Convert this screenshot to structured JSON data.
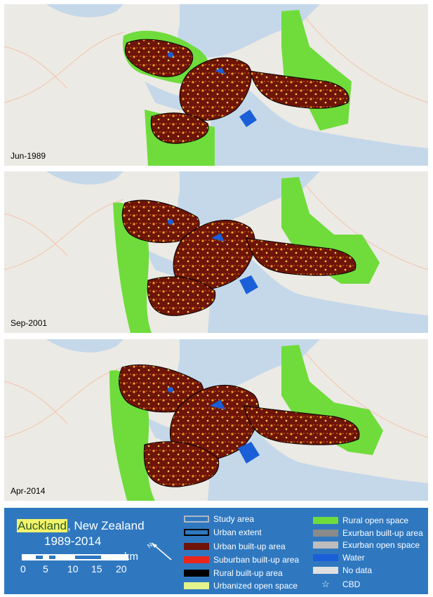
{
  "panels": [
    {
      "date": "Jun-1989"
    },
    {
      "date": "Sep-2001"
    },
    {
      "date": "Apr-2014"
    }
  ],
  "legend": {
    "place": "Auckland",
    "country_suffix": ", New Zealand",
    "years": "1989-2014",
    "scale_unit": "km",
    "scale_ticks": [
      "0",
      "5",
      "10",
      "15",
      "20"
    ],
    "items": [
      {
        "label": "Study area",
        "color": "#2f78c0",
        "border": "#aeb8c4"
      },
      {
        "label": "Urban extent",
        "color": "#2f78c0",
        "border": "#000000"
      },
      {
        "label": "Urban built-up area",
        "color": "#6e1408",
        "border": "#6e1408"
      },
      {
        "label": "Suburban built-up area",
        "color": "#e8261a",
        "border": "#e8261a"
      },
      {
        "label": "Rural built-up area",
        "color": "#000000",
        "border": "#000000"
      },
      {
        "label": "Urbanized open space",
        "color": "#e4f48c",
        "border": "#e4f48c"
      },
      {
        "label": "Rural open space",
        "color": "#6fdc3c",
        "border": "#6fdc3c"
      },
      {
        "label": "Exurban built-up area",
        "color": "#8a8a8a",
        "border": "#8a8a8a"
      },
      {
        "label": "Exurban open space",
        "color": "#bdbdbd",
        "border": "#bdbdbd"
      },
      {
        "label": "Water",
        "color": "#1a5fd8",
        "border": "#1a5fd8"
      },
      {
        "label": "No data",
        "color": "#e0e0e0",
        "border": "#e0e0e0"
      },
      {
        "label": "CBD",
        "icon": "star-icon"
      }
    ]
  },
  "colors": {
    "land": "#eceae4",
    "sea": "#c5d8ea",
    "urban": "#6e1408",
    "suburban_speckle": "#f0a21e",
    "open_space": "#6fdc3c",
    "legend_bg": "#2f78c0"
  }
}
